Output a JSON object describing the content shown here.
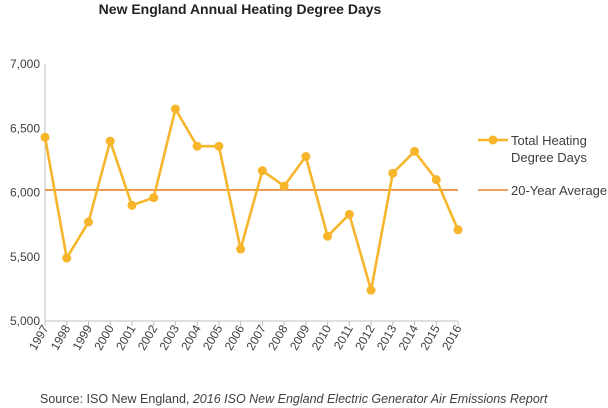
{
  "chart_data": {
    "type": "line",
    "title": "New England Annual Heating Degree Days",
    "xlabel": "",
    "ylabel": "",
    "ylim": [
      5000,
      7000
    ],
    "yticks": [
      "5,000",
      "5,500",
      "6,000",
      "6,500",
      "7,000"
    ],
    "grid": false,
    "legend_position": "right",
    "categories": [
      "1997",
      "1998",
      "1999",
      "2000",
      "2001",
      "2002",
      "2003",
      "2004",
      "2005",
      "2006",
      "2007",
      "2008",
      "2009",
      "2010",
      "2011",
      "2012",
      "2013",
      "2014",
      "2015",
      "2016"
    ],
    "series": [
      {
        "name": "Total Heating Degree Days",
        "legend_lines": [
          "Total Heating",
          "Degree Days"
        ],
        "color": "#F7B52C",
        "values": [
          6430,
          5490,
          5770,
          6400,
          5900,
          5960,
          6650,
          6360,
          6360,
          5560,
          6170,
          6050,
          6280,
          5660,
          5830,
          5240,
          6150,
          6320,
          6100,
          5710
        ]
      },
      {
        "name": "20-Year Average",
        "legend_lines": [
          "20-Year Average"
        ],
        "color": "#E8832A",
        "constant": 6020
      }
    ],
    "source": {
      "prefix": "Source:  ISO New England,  ",
      "italic": "2016 ISO New England Electric Generator Air Emissions Report"
    }
  }
}
